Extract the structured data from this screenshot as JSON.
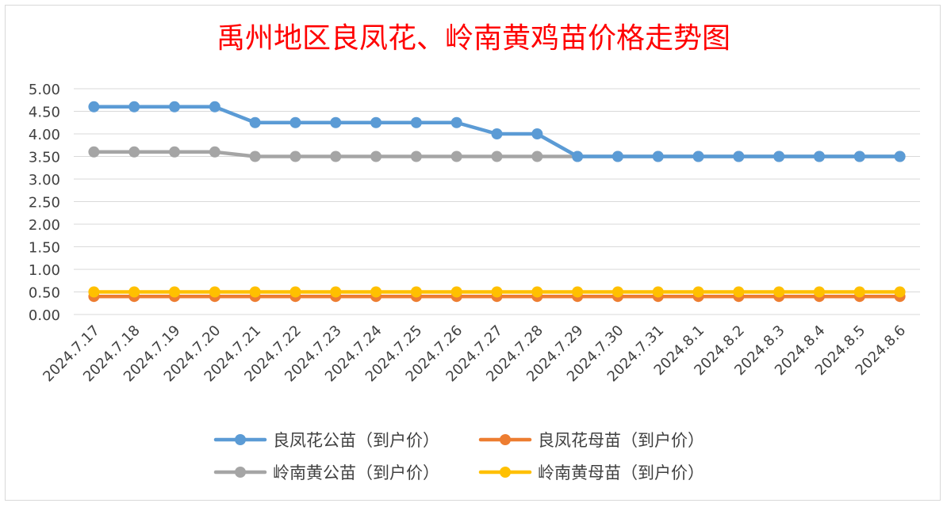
{
  "chart_data": {
    "type": "line",
    "title": "禹州地区良凤花、岭南黄鸡苗价格走势图",
    "xlabel": "",
    "ylabel": "",
    "ylim": [
      0,
      5
    ],
    "y_ticks": [
      "0.00",
      "0.50",
      "1.00",
      "1.50",
      "2.00",
      "2.50",
      "3.00",
      "3.50",
      "4.00",
      "4.50",
      "5.00"
    ],
    "grid": true,
    "legend_position": "bottom",
    "categories": [
      "2024.7.17",
      "2024.7.18",
      "2024.7.19",
      "2024.7.20",
      "2024.7.21",
      "2024.7.22",
      "2024.7.23",
      "2024.7.24",
      "2024.7.25",
      "2024.7.26",
      "2024.7.27",
      "2024.7.28",
      "2024.7.29",
      "2024.7.30",
      "2024.7.31",
      "2024.8.1",
      "2024.8.2",
      "2024.8.3",
      "2024.8.4",
      "2024.8.5",
      "2024.8.6"
    ],
    "series": [
      {
        "name": "良凤花公苗（到户价）",
        "color": "#5b9bd5",
        "values": [
          4.6,
          4.6,
          4.6,
          4.6,
          4.25,
          4.25,
          4.25,
          4.25,
          4.25,
          4.25,
          4.0,
          4.0,
          3.5,
          3.5,
          3.5,
          3.5,
          3.5,
          3.5,
          3.5,
          3.5,
          3.5
        ]
      },
      {
        "name": "良凤花母苗（到户价）",
        "color": "#ed7d31",
        "values": [
          0.4,
          0.4,
          0.4,
          0.4,
          0.4,
          0.4,
          0.4,
          0.4,
          0.4,
          0.4,
          0.4,
          0.4,
          0.4,
          0.4,
          0.4,
          0.4,
          0.4,
          0.4,
          0.4,
          0.4,
          0.4
        ]
      },
      {
        "name": "岭南黄公苗（到户价）",
        "color": "#a5a5a5",
        "values": [
          3.6,
          3.6,
          3.6,
          3.6,
          3.5,
          3.5,
          3.5,
          3.5,
          3.5,
          3.5,
          3.5,
          3.5,
          3.5,
          3.5,
          3.5,
          3.5,
          3.5,
          3.5,
          3.5,
          3.5,
          3.5
        ]
      },
      {
        "name": "岭南黄母苗（到户价）",
        "color": "#ffc000",
        "values": [
          0.5,
          0.5,
          0.5,
          0.5,
          0.5,
          0.5,
          0.5,
          0.5,
          0.5,
          0.5,
          0.5,
          0.5,
          0.5,
          0.5,
          0.5,
          0.5,
          0.5,
          0.5,
          0.5,
          0.5,
          0.5
        ]
      }
    ]
  }
}
